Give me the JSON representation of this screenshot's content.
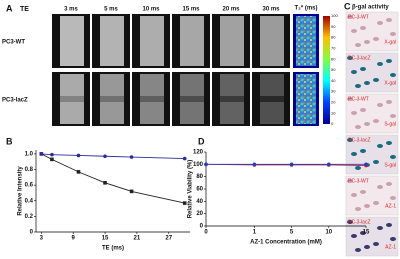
{
  "panel_a": {
    "letter": "A",
    "te_label": "TE",
    "columns": [
      "3 ms",
      "5 ms",
      "10 ms",
      "15 ms",
      "20 ms",
      "30 ms"
    ],
    "map_label": "T₂* (ms)",
    "rows": [
      "PC3-WT",
      "PC3-lacZ"
    ],
    "colorbar_ticks": [
      100,
      90,
      80,
      70,
      60,
      50,
      40,
      30,
      20,
      10,
      0
    ]
  },
  "panel_b": {
    "letter": "B"
  },
  "panel_d": {
    "letter": "D"
  },
  "panel_c": {
    "letter": "C",
    "title": "β-gal activity",
    "images": [
      [
        "PC-3-WT",
        "X-gal"
      ],
      [
        "PC-3-lacZ",
        "X-gal"
      ],
      [
        "PC-3-WT",
        "S-gal"
      ],
      [
        "PC-3-lacZ",
        "S-gal"
      ],
      [
        "PC-3-WT",
        "AZ-1"
      ],
      [
        "PC-3-lacZ",
        "AZ-1"
      ]
    ]
  },
  "chart_data": [
    {
      "type": "line",
      "x_label": "TE (ms)",
      "y_label": "Relative Intensity",
      "x": [
        3,
        5,
        10,
        15,
        20,
        30
      ],
      "xlim": [
        2,
        31
      ],
      "xticks": [
        3,
        9,
        15,
        21,
        27
      ],
      "ylim": [
        0,
        1.05
      ],
      "yticks": [
        0,
        0.2,
        0.4,
        0.6,
        0.8,
        {
          "value": 1,
          "label": "1.0"
        }
      ],
      "series": [
        {
          "name": "PC3-lacZ",
          "color": "#222222",
          "marker": "square",
          "values": [
            1.0,
            0.93,
            0.77,
            0.63,
            0.52,
            0.37
          ]
        },
        {
          "name": "PC3-WT",
          "color": "#2b2b9a",
          "marker": "circle",
          "values": [
            1.0,
            0.99,
            0.98,
            0.97,
            0.96,
            0.94
          ]
        }
      ]
    },
    {
      "type": "line",
      "x_label": "AZ-1 Concentration (mM)",
      "y_label": "Relative Viability (%)",
      "categories": [
        "0",
        "1",
        "5",
        "10",
        "15"
      ],
      "ylim": [
        0,
        120
      ],
      "yticks": [
        0,
        20,
        40,
        60,
        80,
        100,
        120
      ],
      "series": [
        {
          "name": "PC3-WT",
          "color": "#d42020",
          "marker": "circle",
          "values": [
            100,
            99,
            99,
            99,
            98
          ]
        },
        {
          "name": "PC3-lacZ",
          "color": "#2040c0",
          "marker": "circle",
          "values": [
            100,
            100,
            100,
            100,
            100
          ]
        }
      ]
    }
  ]
}
